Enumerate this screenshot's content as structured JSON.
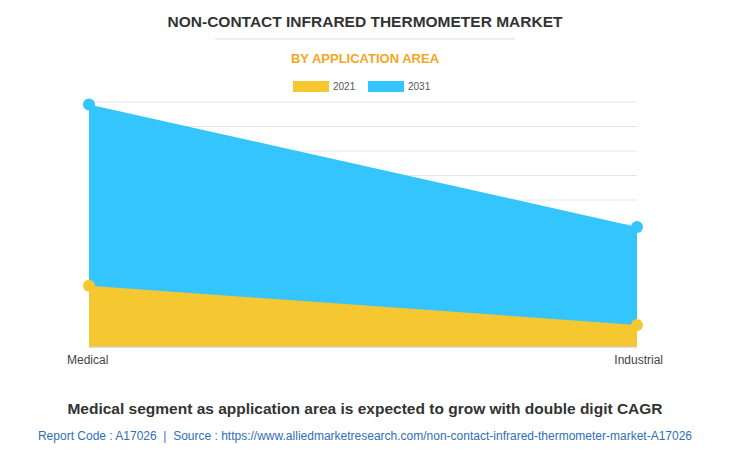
{
  "chart_data": {
    "type": "area",
    "title": "NON-CONTACT INFRARED THERMOMETER MARKET",
    "subtitle": "BY APPLICATION AREA",
    "categories": [
      "Medical",
      "Industrial"
    ],
    "series": [
      {
        "name": "2021",
        "color": "#f5c832",
        "values": [
          2.5,
          0.9
        ]
      },
      {
        "name": "2031",
        "color": "#33c5fc",
        "values": [
          9.9,
          4.9
        ]
      }
    ],
    "ylim": [
      0,
      10
    ],
    "yticks": [
      0,
      1,
      2,
      3,
      4,
      5,
      6,
      7,
      8,
      9,
      10
    ],
    "grid": true,
    "tick_labels": "x",
    "legend": "top",
    "marker": "circle",
    "stacked": false,
    "annotations": [
      "Medical segment as application area is expected to grow with double digit CAGR",
      "Report Code : A17026  |  Source : https://www.alliedmarketresearch.com/non-contact-infrared-thermometer-market-A17026"
    ]
  }
}
